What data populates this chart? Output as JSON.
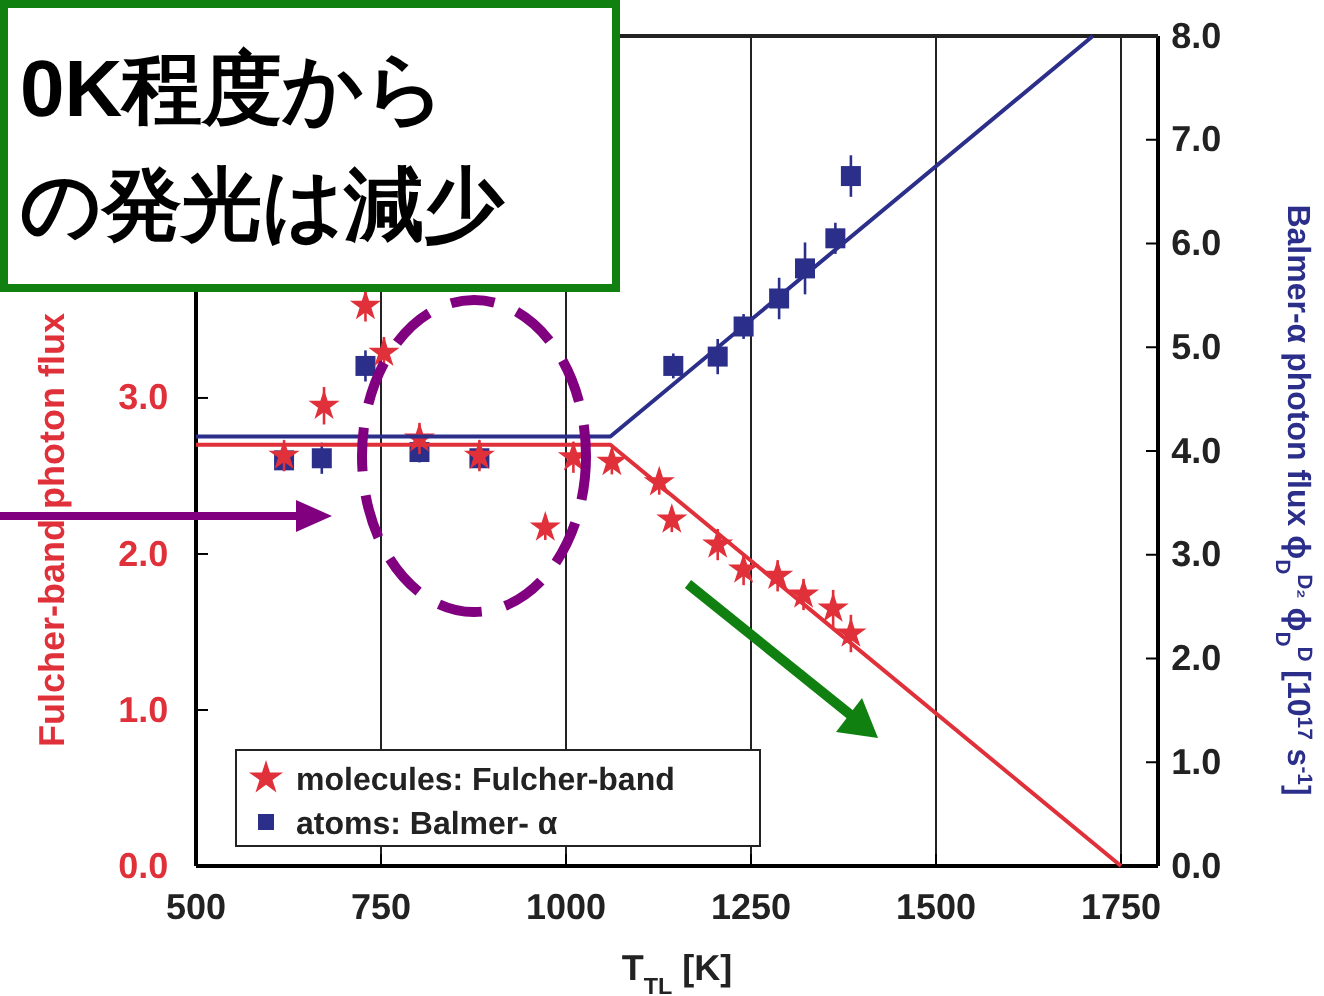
{
  "chart_data": {
    "type": "scatter",
    "xlabel": "T$_{TL}$ [K]",
    "ylabel": "Fulcher-band photon flux",
    "y2label": "Balmer-α photon flux  ϕ$_{D}$$^{D₂}$ ϕ$_{D}$$^{D}$ [10$^{17}$ s$^{-1}$]",
    "xlim": [
      500,
      1800
    ],
    "xticks": [
      500,
      750,
      1000,
      1250,
      1500,
      1750
    ],
    "ylim": [
      0,
      5.32
    ],
    "yticks": [
      {
        "value": 0,
        "label": "0.0"
      },
      {
        "value": 1,
        "label": "1.0"
      },
      {
        "value": 2,
        "label": "2.0"
      },
      {
        "value": 3,
        "label": "3.0"
      }
    ],
    "y2lim": [
      0,
      8
    ],
    "y2ticks": [
      {
        "value": 0,
        "label": "0.0"
      },
      {
        "value": 1,
        "label": "1.0"
      },
      {
        "value": 2,
        "label": "2.0"
      },
      {
        "value": 3,
        "label": "3.0"
      },
      {
        "value": 4,
        "label": "4.0"
      },
      {
        "value": 5,
        "label": "5.0"
      },
      {
        "value": 6,
        "label": "6.0"
      },
      {
        "value": 7,
        "label": "7.0"
      },
      {
        "value": 8,
        "label": "8.0"
      }
    ],
    "grid": "x",
    "legend": "bottom left",
    "series": [
      {
        "name": "molecules: Fulcher-band",
        "color": "#e0303a",
        "marker": "star",
        "axis": "y",
        "x": [
          619,
          673,
          729,
          754,
          802,
          883,
          972,
          1010,
          1062,
          1126,
          1143,
          1205,
          1240,
          1286,
          1321,
          1361,
          1385
        ],
        "values": [
          2.63,
          2.95,
          3.59,
          3.29,
          2.74,
          2.63,
          2.17,
          2.62,
          2.59,
          2.46,
          2.22,
          2.06,
          1.9,
          1.86,
          1.74,
          1.65,
          1.49
        ],
        "errors": [
          0.1,
          0.12,
          0.1,
          0.1,
          0.1,
          0.1,
          0.08,
          0.1,
          0.08,
          0.08,
          0.08,
          0.1,
          0.1,
          0.1,
          0.1,
          0.12,
          0.12
        ]
      },
      {
        "name": "atoms: Balmer- α",
        "color": "#2b2f8a",
        "marker": "square",
        "axis": "y2",
        "x": [
          619,
          670,
          729,
          802,
          883,
          1145,
          1205,
          1240,
          1288,
          1323,
          1364,
          1385
        ],
        "values": [
          3.91,
          3.93,
          4.82,
          3.99,
          3.93,
          4.82,
          4.91,
          5.2,
          5.47,
          5.76,
          6.05,
          6.65
        ],
        "errors": [
          0.1,
          0.15,
          0.15,
          0.1,
          0.1,
          0.12,
          0.17,
          0.12,
          0.2,
          0.25,
          0.15,
          0.2
        ]
      },
      {
        "type": "line",
        "color": "#e0303a",
        "axis": "y",
        "marker": "none",
        "x": [
          500,
          1060,
          1750
        ],
        "values": [
          2.7,
          2.7,
          0
        ]
      },
      {
        "type": "line",
        "color": "#2b2f8a",
        "axis": "y2",
        "marker": "none",
        "x": [
          500,
          1060,
          1712
        ],
        "values": [
          4.14,
          4.14,
          8.0
        ]
      }
    ],
    "annotations": [
      "0K程度から",
      "の発光は減少"
    ]
  }
}
